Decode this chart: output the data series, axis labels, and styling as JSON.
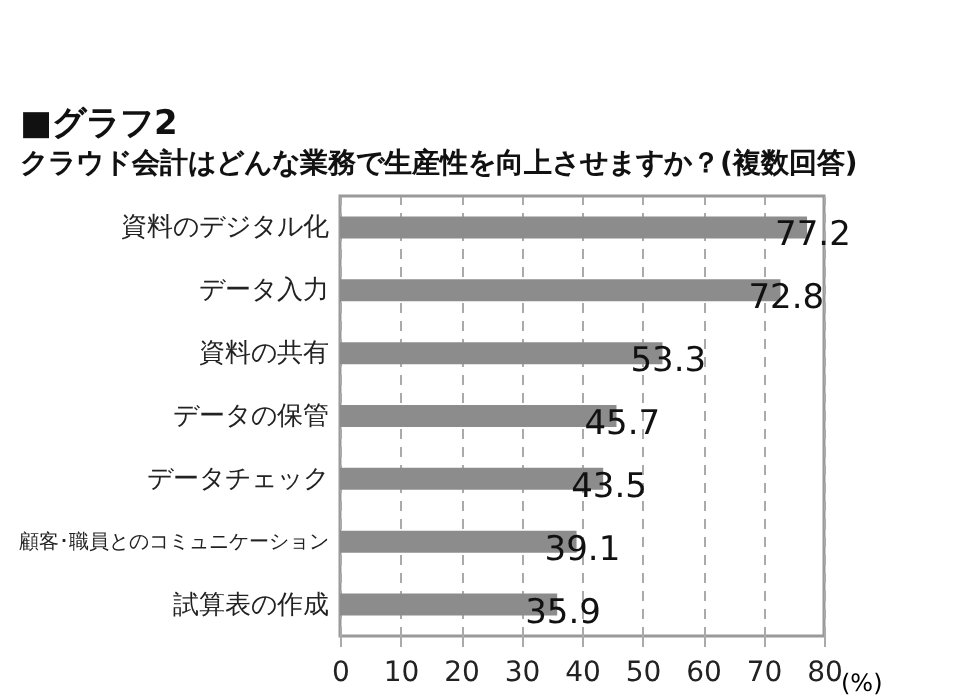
{
  "chart_data": {
    "type": "bar",
    "orientation": "horizontal",
    "title": "■グラフ2",
    "subtitle": "クラウド会計はどんな業務で生産性を向上させますか？(複数回答)",
    "xlabel": "(%)",
    "categories": [
      "資料のデジタル化",
      "データ入力",
      "資料の共有",
      "データの保管",
      "データチェック",
      "顧客･職員とのコミュニケーション",
      "試算表の作成"
    ],
    "values": [
      77.2,
      72.8,
      53.3,
      45.7,
      43.5,
      39.1,
      35.9
    ],
    "color": "#8c8c8c",
    "xlim": [
      0,
      80
    ],
    "xticks": [
      0,
      10,
      20,
      30,
      40,
      50,
      60,
      70,
      80
    ],
    "grid": "x",
    "data_labels": true
  }
}
